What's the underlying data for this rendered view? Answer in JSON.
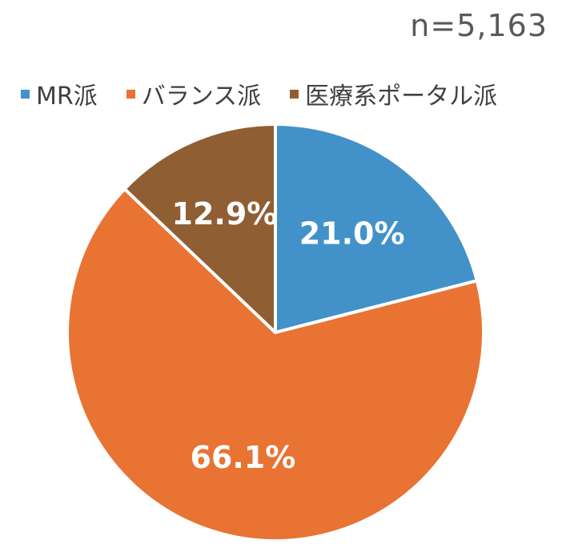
{
  "sample_size": "n=5,163",
  "chart_data": {
    "type": "pie",
    "series": [
      {
        "name": "MR派",
        "value": 21.0,
        "label": "21.0%",
        "color": "#4292C9"
      },
      {
        "name": "バランス派",
        "value": 66.1,
        "label": "66.1%",
        "color": "#E87333"
      },
      {
        "name": "医療系ポータル派",
        "value": 12.9,
        "label": "12.9%",
        "color": "#905E33"
      }
    ],
    "legend_position": "top",
    "start_angle": "12 o'clock",
    "direction": "clockwise"
  },
  "legend": [
    {
      "label": "MR派",
      "color": "#4292C9"
    },
    {
      "label": "バランス派",
      "color": "#E87333"
    },
    {
      "label": "医療系ポータル派",
      "color": "#905E33"
    }
  ]
}
